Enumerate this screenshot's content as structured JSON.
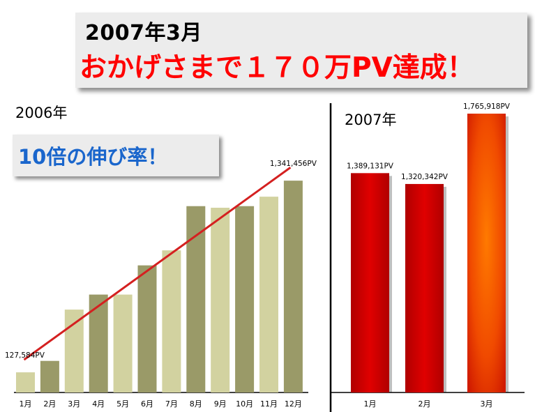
{
  "title": {
    "line1": "2007年3月",
    "line2": "おかげさまで１７０万PV達成！"
  },
  "panel_2006": {
    "label": "2006年",
    "callout": "10倍の伸び率！"
  },
  "panel_2007": {
    "label": "2007年"
  },
  "colors": {
    "bar_dark": "#9a9a68",
    "bar_light": "#d2d2a0",
    "bar_red": "#cc0000",
    "bar_orange": "#ff6600",
    "trend_line": "#d42020",
    "divider": "#000000"
  },
  "chart_data": [
    {
      "type": "bar",
      "categories": [
        "1月",
        "2月",
        "3月",
        "4月",
        "5月",
        "6月",
        "7月",
        "8月",
        "9月",
        "10月",
        "11月",
        "12月"
      ],
      "values": [
        127584,
        200000,
        525000,
        620000,
        620000,
        805000,
        900000,
        1180000,
        1170000,
        1180000,
        1240000,
        1341456
      ],
      "data_labels": [
        "127,584PV",
        "",
        "",
        "",
        "",
        "",
        "",
        "",
        "",
        "",
        "",
        "1,341,456PV"
      ],
      "bar_colors": [
        "light",
        "dark",
        "light",
        "dark",
        "light",
        "dark",
        "light",
        "dark",
        "light",
        "dark",
        "light",
        "dark"
      ],
      "trendline": true,
      "grid": false
    },
    {
      "type": "bar",
      "categories": [
        "1月",
        "2月",
        "3月"
      ],
      "values": [
        1389131,
        1320342,
        1765918
      ],
      "data_labels": [
        "1,389,131PV",
        "1,320,342PV",
        "1,765,918PV"
      ],
      "bar_colors": [
        "red",
        "red",
        "orange"
      ],
      "grid": false
    }
  ]
}
